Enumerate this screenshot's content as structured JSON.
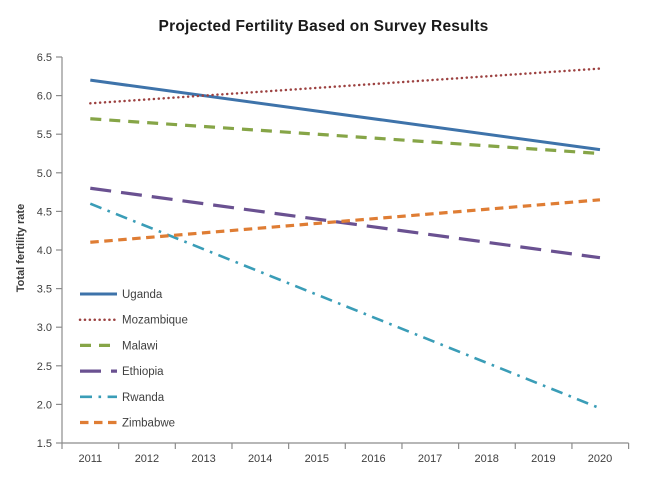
{
  "chart_data": {
    "type": "line",
    "title": "Projected Fertility Based on Survey Results",
    "ylabel": "Total fertility rate",
    "xlabel": "",
    "x_categories": [
      2011,
      2012,
      2013,
      2014,
      2015,
      2016,
      2017,
      2018,
      2019,
      2020
    ],
    "ylim": [
      1.5,
      6.5
    ],
    "ytick_step": 0.5,
    "grid": false,
    "legend_position": "inside-lower-left",
    "axis_color": "#8c8c8c",
    "text_color": "#404040",
    "series": [
      {
        "name": "Uganda",
        "color": "#3e73aa",
        "style": "solid",
        "x": [
          2011,
          2020
        ],
        "values": [
          6.2,
          5.3
        ]
      },
      {
        "name": "Mozambique",
        "color": "#9c4140",
        "style": "dotted",
        "x": [
          2011,
          2020
        ],
        "values": [
          5.9,
          6.35
        ]
      },
      {
        "name": "Malawi",
        "color": "#86a547",
        "style": "dashed",
        "x": [
          2011,
          2020
        ],
        "values": [
          5.7,
          5.25
        ]
      },
      {
        "name": "Ethiopia",
        "color": "#6a5191",
        "style": "long-dash",
        "x": [
          2011,
          2020
        ],
        "values": [
          4.8,
          3.9
        ]
      },
      {
        "name": "Rwanda",
        "color": "#3a9db7",
        "style": "dash-dot",
        "x": [
          2011,
          2020
        ],
        "values": [
          4.6,
          1.95
        ]
      },
      {
        "name": "Zimbabwe",
        "color": "#df7d34",
        "style": "short-dash",
        "x": [
          2011,
          2020
        ],
        "values": [
          4.1,
          4.65
        ]
      }
    ]
  }
}
